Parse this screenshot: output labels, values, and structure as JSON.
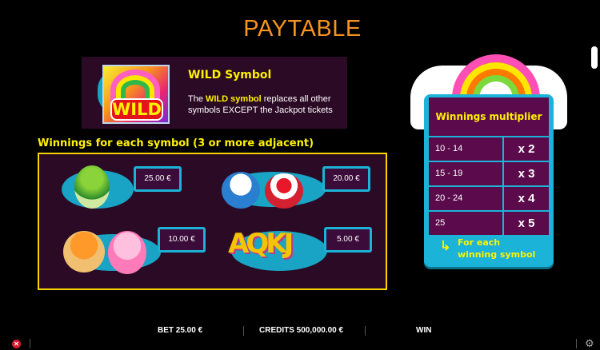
{
  "title": "PAYTABLE",
  "wild": {
    "heading": "WILD Symbol",
    "icon_text": "WILD",
    "desc_pre": "The ",
    "desc_highlight": "WILD symbol",
    "desc_post": " replaces all other symbols EXCEPT the Jackpot tickets"
  },
  "symbols": {
    "heading": "Winnings for each symbol (3 or more adjacent)",
    "items": [
      {
        "icon": "green-cupcake",
        "value": "25.00 €"
      },
      {
        "icon": "blue-and-red-cupcakes",
        "value": "20.00 €"
      },
      {
        "icon": "orange-and-pink-cupcakes",
        "value": "10.00 €"
      },
      {
        "icon": "card-letters",
        "letters": "AQKJ",
        "value": "5.00 €"
      }
    ]
  },
  "multiplier": {
    "heading": "Winnings multiplier",
    "rows": [
      {
        "range": "10 - 14",
        "mult": "x 2"
      },
      {
        "range": "15 - 19",
        "mult": "x 3"
      },
      {
        "range": "20 - 24",
        "mult": "x 4"
      },
      {
        "range": "25",
        "mult": "x 5"
      }
    ],
    "footer_line1": "For each",
    "footer_line2": "winning symbol"
  },
  "bottom_bar": {
    "bet": "BET 25.00 €",
    "credits": "CREDITS 500,000.00 €",
    "win": "WIN"
  },
  "colors": {
    "accent_orange": "#f7931e",
    "yellow": "#fff200",
    "cyan": "#1ab3d6",
    "purple": "#5b0b4c"
  }
}
